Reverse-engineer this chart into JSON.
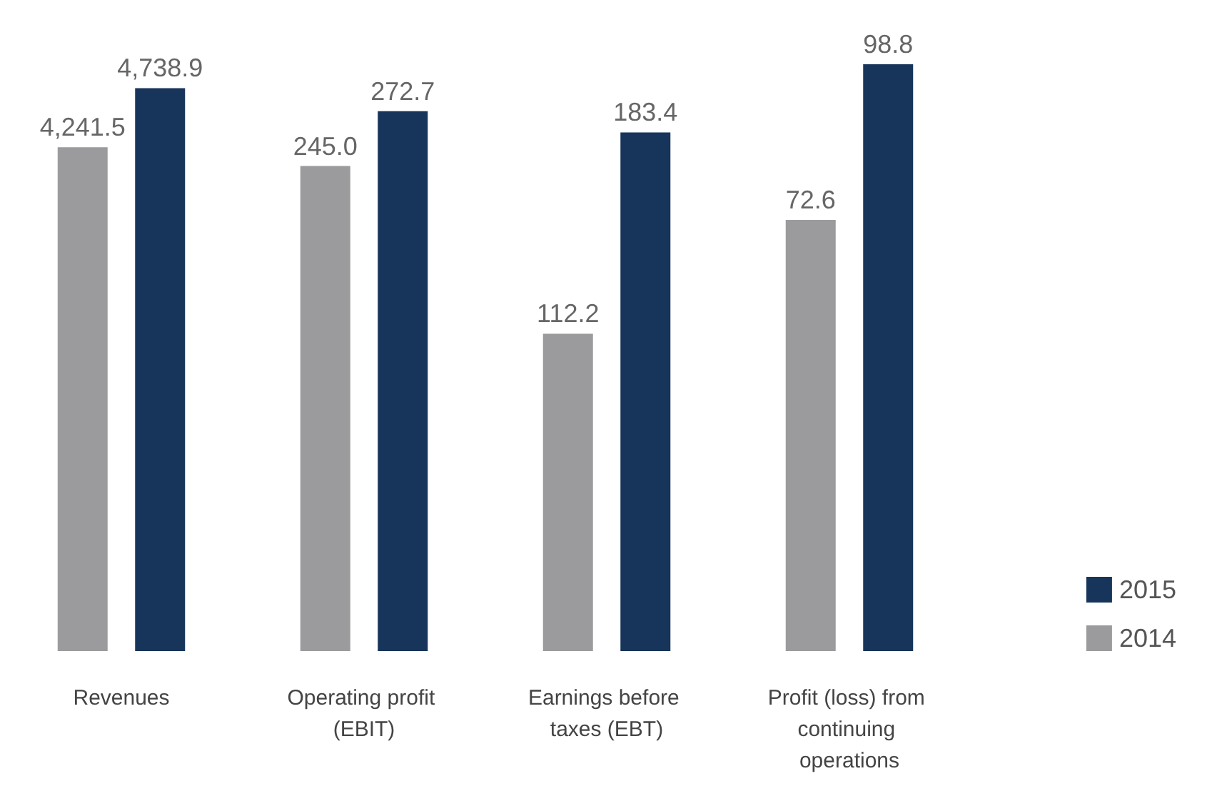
{
  "chart_data": [
    {
      "type": "bar",
      "categories": [
        "Revenues"
      ],
      "tick_labels": "x",
      "legend": false,
      "series": [
        {
          "color": "#9b9b9e",
          "values": [
            4241.5
          ],
          "value_labels": [
            "4,241.5"
          ]
        },
        {
          "color": "#17355a",
          "values": [
            4738.9
          ],
          "value_labels": [
            "4,738.9"
          ]
        }
      ]
    },
    {
      "type": "bar",
      "categories": [
        "Operating profit (EBIT)"
      ],
      "tick_labels": "x",
      "legend": false,
      "series": [
        {
          "color": "#9b9b9e",
          "values": [
            245.0
          ],
          "value_labels": [
            "245.0"
          ]
        },
        {
          "color": "#17355a",
          "values": [
            272.7
          ],
          "value_labels": [
            "272.7"
          ]
        }
      ]
    },
    {
      "type": "bar",
      "categories": [
        "Earnings before taxes (EBT)"
      ],
      "tick_labels": "x",
      "legend": false,
      "series": [
        {
          "color": "#9b9b9e",
          "values": [
            112.2
          ],
          "value_labels": [
            "112.2"
          ]
        },
        {
          "color": "#17355a",
          "values": [
            183.4
          ],
          "value_labels": [
            "183.4"
          ]
        }
      ]
    },
    {
      "type": "bar",
      "categories": [
        "Profit (loss) from continuing operations"
      ],
      "tick_labels": "x",
      "legend": "right",
      "series": [
        {
          "name": "2014",
          "color": "#9b9b9e",
          "values": [
            72.6
          ],
          "value_labels": [
            "72.6"
          ]
        },
        {
          "name": "2015",
          "color": "#17355a",
          "values": [
            98.8
          ],
          "value_labels": [
            "98.8"
          ]
        }
      ]
    }
  ]
}
